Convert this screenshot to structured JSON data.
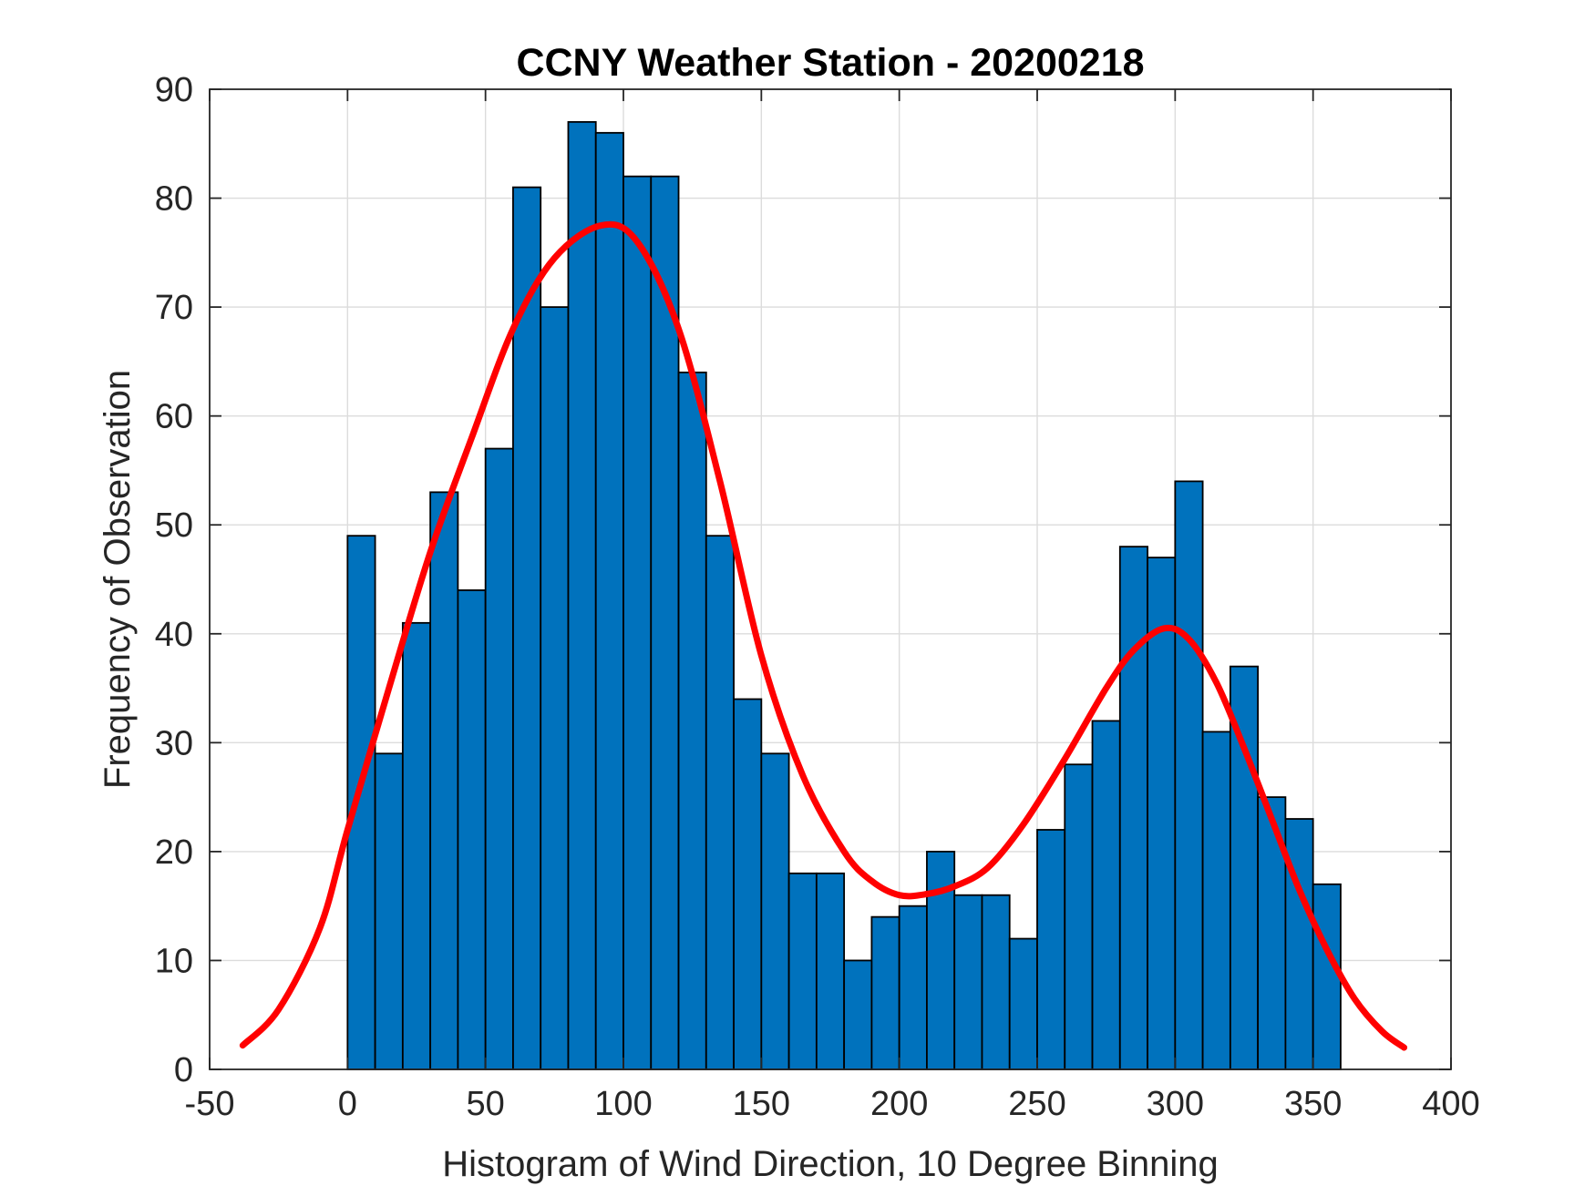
{
  "chart_data": {
    "type": "bar",
    "title": "CCNY Weather Station - 20200218",
    "xlabel": "Histogram of Wind Direction, 10 Degree Binning",
    "ylabel": "Frequency of Observation",
    "xlim": [
      -50,
      400
    ],
    "ylim": [
      0,
      90
    ],
    "grid": true,
    "bin_width": 10,
    "x_ticks": [
      -50,
      0,
      50,
      100,
      150,
      200,
      250,
      300,
      350,
      400
    ],
    "x_tick_labels": [
      "-50",
      "0",
      "50",
      "100",
      "150",
      "200",
      "250",
      "300",
      "350",
      "400"
    ],
    "y_ticks": [
      0,
      10,
      20,
      30,
      40,
      50,
      60,
      70,
      80,
      90
    ],
    "y_tick_labels": [
      "0",
      "10",
      "20",
      "30",
      "40",
      "50",
      "60",
      "70",
      "80",
      "90"
    ],
    "series": [
      {
        "name": "Wind direction histogram",
        "type": "bar",
        "color": "#0072BD",
        "edge_color": "#000000",
        "bin_starts": [
          0,
          10,
          20,
          30,
          40,
          50,
          60,
          70,
          80,
          90,
          100,
          110,
          120,
          130,
          140,
          150,
          160,
          170,
          180,
          190,
          200,
          210,
          220,
          230,
          240,
          250,
          260,
          270,
          280,
          290,
          300,
          310,
          320,
          330,
          340,
          350
        ],
        "values": [
          49,
          29,
          41,
          53,
          44,
          57,
          81,
          70,
          87,
          86,
          82,
          82,
          64,
          49,
          34,
          29,
          18,
          18,
          10,
          14,
          15,
          20,
          16,
          16,
          12,
          22,
          28,
          32,
          48,
          47,
          54,
          31,
          37,
          25,
          23,
          17
        ]
      },
      {
        "name": "Fitted curve",
        "type": "line",
        "color": "#FF0000",
        "x": [
          -38,
          -25,
          -10,
          0,
          15,
          30,
          45,
          60,
          75,
          92,
          105,
          120,
          135,
          150,
          165,
          180,
          190,
          200,
          210,
          220,
          232,
          245,
          260,
          275,
          285,
          296,
          305,
          315,
          325,
          335,
          345,
          355,
          365,
          375,
          383
        ],
        "y": [
          2.2,
          5.5,
          13.0,
          22.0,
          35.0,
          47.5,
          58.0,
          68.0,
          74.5,
          77.5,
          76.0,
          68.0,
          54.0,
          38.0,
          27.0,
          20.0,
          17.3,
          16.0,
          16.1,
          16.8,
          18.5,
          22.5,
          28.5,
          35.0,
          38.5,
          40.5,
          39.5,
          35.5,
          29.5,
          23.0,
          16.5,
          11.0,
          6.5,
          3.5,
          2.0
        ]
      }
    ]
  }
}
